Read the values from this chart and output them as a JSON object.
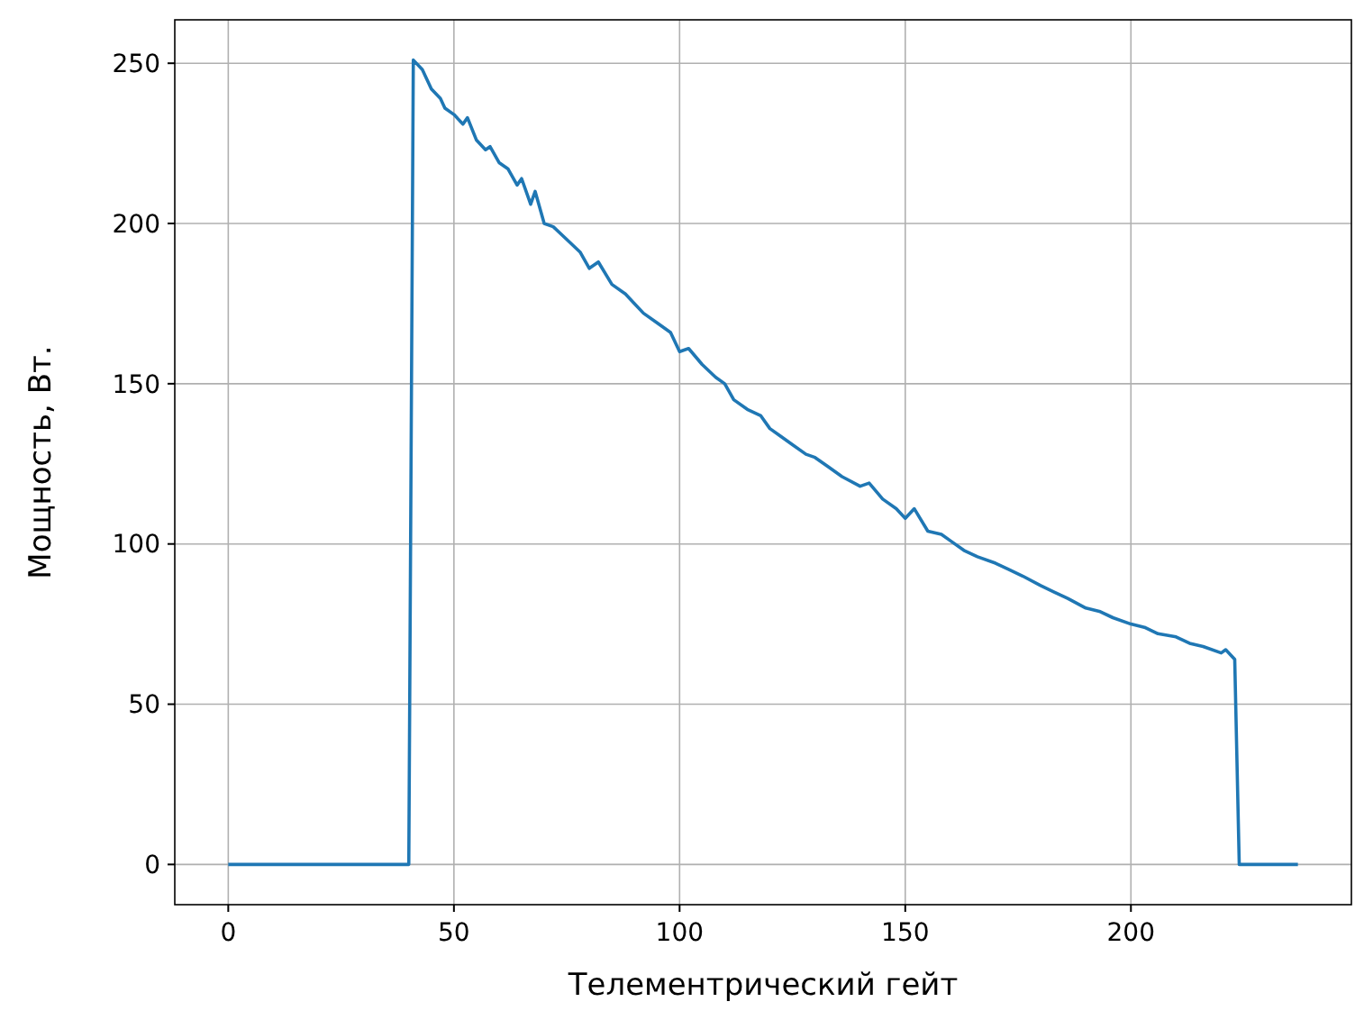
{
  "chart_data": {
    "type": "line",
    "xlabel": "Телементрический гейт",
    "ylabel": "Мощность, Вт.",
    "series": [
      {
        "color": "#1f77b4",
        "x": [
          0,
          10,
          20,
          30,
          40,
          41,
          43,
          45,
          47,
          48,
          50,
          52,
          53,
          55,
          57,
          58,
          60,
          62,
          64,
          65,
          67,
          68,
          70,
          72,
          75,
          78,
          80,
          82,
          85,
          88,
          90,
          92,
          95,
          98,
          100,
          102,
          105,
          108,
          110,
          112,
          115,
          118,
          120,
          122,
          125,
          128,
          130,
          133,
          136,
          140,
          142,
          145,
          148,
          150,
          152,
          155,
          158,
          160,
          163,
          166,
          170,
          173,
          176,
          180,
          183,
          186,
          190,
          193,
          196,
          200,
          203,
          206,
          210,
          213,
          216,
          220,
          221,
          223,
          224,
          230,
          237
        ],
        "values": [
          0,
          0,
          0,
          0,
          0,
          251,
          248,
          242,
          239,
          236,
          234,
          231,
          233,
          226,
          223,
          224,
          219,
          217,
          212,
          214,
          206,
          210,
          200,
          199,
          195,
          191,
          186,
          188,
          181,
          178,
          175,
          172,
          169,
          166,
          160,
          161,
          156,
          152,
          150,
          145,
          142,
          140,
          136,
          134,
          131,
          128,
          127,
          124,
          121,
          118,
          119,
          114,
          111,
          108,
          111,
          104,
          103,
          101,
          98,
          96,
          94,
          92,
          90,
          87,
          85,
          83,
          80,
          79,
          77,
          75,
          74,
          72,
          71,
          69,
          68,
          66,
          67,
          64,
          0,
          0,
          0
        ]
      }
    ],
    "xlim": [
      -11.85,
      248.85
    ],
    "ylim": [
      -12.55,
      263.55
    ],
    "xticks": [
      0,
      50,
      100,
      150,
      200
    ],
    "yticks": [
      0,
      50,
      100,
      150,
      200,
      250
    ],
    "grid": true
  }
}
